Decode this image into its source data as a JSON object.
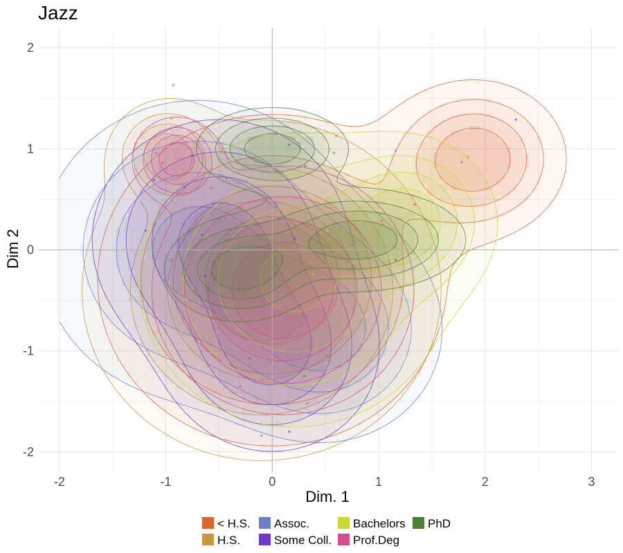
{
  "chart_data": {
    "type": "density-contour",
    "title": "Jazz",
    "xlabel": "Dim. 1",
    "ylabel": "Dim 2",
    "xlim": [
      -2.2,
      3.25
    ],
    "ylim": [
      -2.2,
      2.2
    ],
    "x_ticks": [
      "-2",
      "-1",
      "0",
      "1",
      "2",
      "3"
    ],
    "y_ticks": [
      "-2",
      "-1",
      "0",
      "1",
      "2"
    ],
    "legend_position": "bottom",
    "series": [
      {
        "name": "< H.S.",
        "color": "#E0632E",
        "modes": [
          {
            "x": 1.9,
            "y": 0.9,
            "sx": 0.42,
            "sy": 0.38
          },
          {
            "x": 0.0,
            "y": -0.3,
            "sx": 0.8,
            "sy": 0.8
          }
        ]
      },
      {
        "name": "H.S.",
        "color": "#C8963E",
        "modes": [
          {
            "x": -0.1,
            "y": -0.4,
            "sx": 0.85,
            "sy": 0.85
          },
          {
            "x": -1.0,
            "y": 0.95,
            "sx": 0.25,
            "sy": 0.25
          }
        ]
      },
      {
        "name": "Assoc.",
        "color": "#6B80C8",
        "modes": [
          {
            "x": -0.7,
            "y": 0.0,
            "sx": 0.75,
            "sy": 0.75
          },
          {
            "x": 0.5,
            "y": -0.8,
            "sx": 0.55,
            "sy": 0.55
          }
        ]
      },
      {
        "name": "Some Coll.",
        "color": "#6A3CC8",
        "modes": [
          {
            "x": -0.5,
            "y": 0.1,
            "sx": 0.6,
            "sy": 0.6
          },
          {
            "x": 0.0,
            "y": -1.0,
            "sx": 0.5,
            "sy": 0.5
          }
        ]
      },
      {
        "name": "Bachelors",
        "color": "#C9D838",
        "modes": [
          {
            "x": 0.2,
            "y": -0.3,
            "sx": 0.75,
            "sy": 0.75
          },
          {
            "x": 1.3,
            "y": 0.3,
            "sx": 0.4,
            "sy": 0.4
          }
        ]
      },
      {
        "name": "Prof.Deg",
        "color": "#D44D8E",
        "modes": [
          {
            "x": -0.9,
            "y": 0.9,
            "sx": 0.2,
            "sy": 0.2
          },
          {
            "x": 0.1,
            "y": -0.4,
            "sx": 0.6,
            "sy": 0.6
          }
        ]
      },
      {
        "name": "PhD",
        "color": "#4C7E3A",
        "modes": [
          {
            "x": -0.3,
            "y": -0.2,
            "sx": 0.35,
            "sy": 0.25
          },
          {
            "x": 0.0,
            "y": 1.0,
            "sx": 0.35,
            "sy": 0.2
          },
          {
            "x": 0.8,
            "y": 0.1,
            "sx": 0.5,
            "sy": 0.25
          }
        ]
      }
    ],
    "points": [
      [
        -0.93,
        1.63
      ],
      [
        -0.95,
        1.3
      ],
      [
        -1.09,
        0.96
      ],
      [
        -0.75,
        0.93
      ],
      [
        -0.86,
        0.77
      ],
      [
        -1.03,
        0.86
      ],
      [
        0.16,
        1.04
      ],
      [
        0.6,
        1.13
      ],
      [
        1.84,
        0.92
      ],
      [
        1.78,
        0.87
      ],
      [
        2.29,
        1.29
      ],
      [
        0.52,
        0.19
      ],
      [
        0.75,
        0.05
      ],
      [
        1.16,
        -0.1
      ],
      [
        1.03,
        0.29
      ],
      [
        1.32,
        0.54
      ],
      [
        1.16,
        0.98
      ],
      [
        -1.19,
        0.19
      ],
      [
        -1.28,
        0.38
      ],
      [
        -0.82,
        0.62
      ],
      [
        -0.43,
        0.71
      ],
      [
        -0.57,
        0.61
      ],
      [
        -0.33,
        0.41
      ],
      [
        -0.13,
        0.25
      ],
      [
        0.21,
        0.11
      ],
      [
        0.38,
        -0.24
      ],
      [
        -0.07,
        -0.48
      ],
      [
        -0.21,
        -1.07
      ],
      [
        -0.3,
        -1.35
      ],
      [
        -0.14,
        -1.48
      ],
      [
        -0.1,
        -1.84
      ],
      [
        0.16,
        -1.8
      ],
      [
        0.04,
        -1.7
      ],
      [
        0.33,
        -1.52
      ],
      [
        0.3,
        -1.25
      ],
      [
        0.52,
        -1.05
      ],
      [
        0.63,
        -0.73
      ],
      [
        0.72,
        -0.42
      ],
      [
        -0.63,
        -0.26
      ],
      [
        -0.81,
        -0.49
      ],
      [
        -0.95,
        -0.1
      ],
      [
        -0.66,
        0.15
      ],
      [
        -0.57,
        -0.68
      ],
      [
        0.5,
        0.43
      ],
      [
        0.58,
        0.96
      ],
      [
        -1.11,
        0.69
      ],
      [
        0.96,
        0.65
      ],
      [
        1.34,
        0.45
      ],
      [
        0.31,
        0.83
      ]
    ]
  }
}
